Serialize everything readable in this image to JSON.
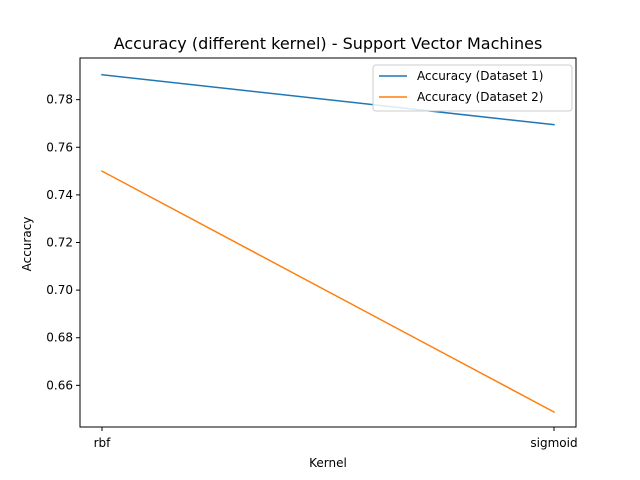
{
  "chart_data": {
    "type": "line",
    "title": "Accuracy (different kernel) - Support Vector Machines",
    "xlabel": "Kernel",
    "ylabel": "Accuracy",
    "categories": [
      "rbf",
      "sigmoid"
    ],
    "ylim": [
      0.6425,
      0.7975
    ],
    "yticks": [
      0.66,
      0.68,
      0.7,
      0.72,
      0.74,
      0.76,
      0.78
    ],
    "ytick_labels": [
      "0.66",
      "0.68",
      "0.70",
      "0.72",
      "0.74",
      "0.76",
      "0.78"
    ],
    "grid": false,
    "legend_position": "top-right",
    "series": [
      {
        "name": "Accuracy (Dataset 1)",
        "values": [
          0.7905,
          0.7695
        ],
        "color": "#1f77b4"
      },
      {
        "name": "Accuracy (Dataset 2)",
        "values": [
          0.75,
          0.6488
        ],
        "color": "#ff7f0e"
      }
    ]
  }
}
